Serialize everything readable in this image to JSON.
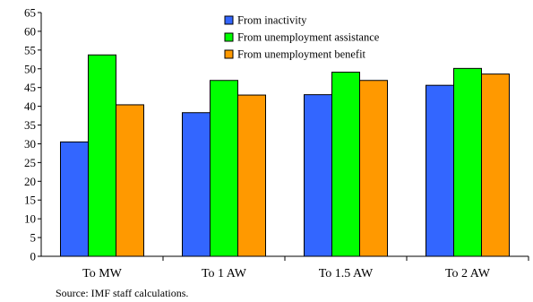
{
  "chart_data": {
    "type": "bar",
    "categories": [
      "To MW",
      "To 1 AW",
      "To 1.5 AW",
      "To 2 AW"
    ],
    "series": [
      {
        "name": "From inactivity",
        "color": "#3366FF",
        "values": [
          30.5,
          38.3,
          43.1,
          45.6
        ]
      },
      {
        "name": "From unemployment assistance",
        "color": "#00FF00",
        "values": [
          53.7,
          46.9,
          49.1,
          50.1
        ]
      },
      {
        "name": "From unemployment benefit",
        "color": "#FF9900",
        "values": [
          40.4,
          43.0,
          46.9,
          48.6
        ]
      }
    ],
    "ylim": [
      0,
      65
    ],
    "ytick_step": 5,
    "grid": false,
    "legend_position": "top-center",
    "title": "",
    "xlabel": "",
    "ylabel": ""
  },
  "source_note": "Source: IMF staff calculations."
}
